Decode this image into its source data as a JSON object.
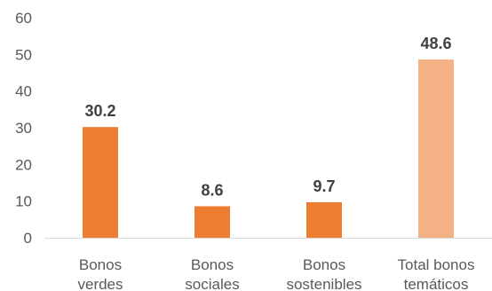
{
  "chart_data": {
    "type": "bar",
    "categories": [
      [
        "Bonos",
        "verdes"
      ],
      [
        "Bonos",
        "sociales"
      ],
      [
        "Bonos",
        "sostenibles"
      ],
      [
        "Total bonos",
        "temáticos"
      ]
    ],
    "values": [
      30.2,
      8.6,
      9.7,
      48.6
    ],
    "value_labels": [
      "30.2",
      "8.6",
      "9.7",
      "48.6"
    ],
    "bar_colors": [
      "#ED7D31",
      "#ED7D31",
      "#ED7D31",
      "#F4B183"
    ],
    "ylim": [
      0,
      60
    ],
    "yticks": [
      0,
      10,
      20,
      30,
      40,
      50,
      60
    ],
    "grid": false,
    "title": "",
    "xlabel": "",
    "ylabel": ""
  },
  "colors": {
    "axis": "#d9d9d9",
    "tick_text": "#595959",
    "label_text": "#404040"
  }
}
